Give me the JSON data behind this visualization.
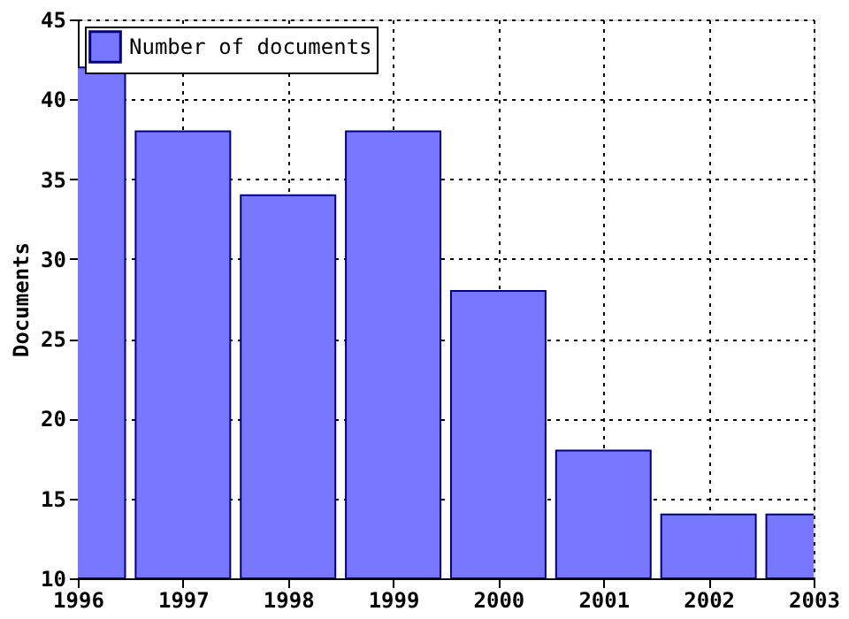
{
  "chart_data": {
    "type": "bar",
    "ylabel": "Documents",
    "x": [
      1996,
      1997,
      1998,
      1999,
      2000,
      2001,
      2002,
      2003
    ],
    "series": [
      {
        "name": "Number of documents",
        "color": "#7777ff",
        "values": [
          42,
          38,
          34,
          38,
          28,
          18,
          14,
          14
        ]
      }
    ],
    "xlim": [
      1996,
      2003
    ],
    "xticks": [
      1996,
      1997,
      1998,
      1999,
      2000,
      2001,
      2002,
      2003
    ],
    "ylim": [
      10,
      45
    ],
    "yticks": [
      10,
      15,
      20,
      25,
      30,
      35,
      40,
      45
    ],
    "grid": true,
    "legend": "top left"
  }
}
